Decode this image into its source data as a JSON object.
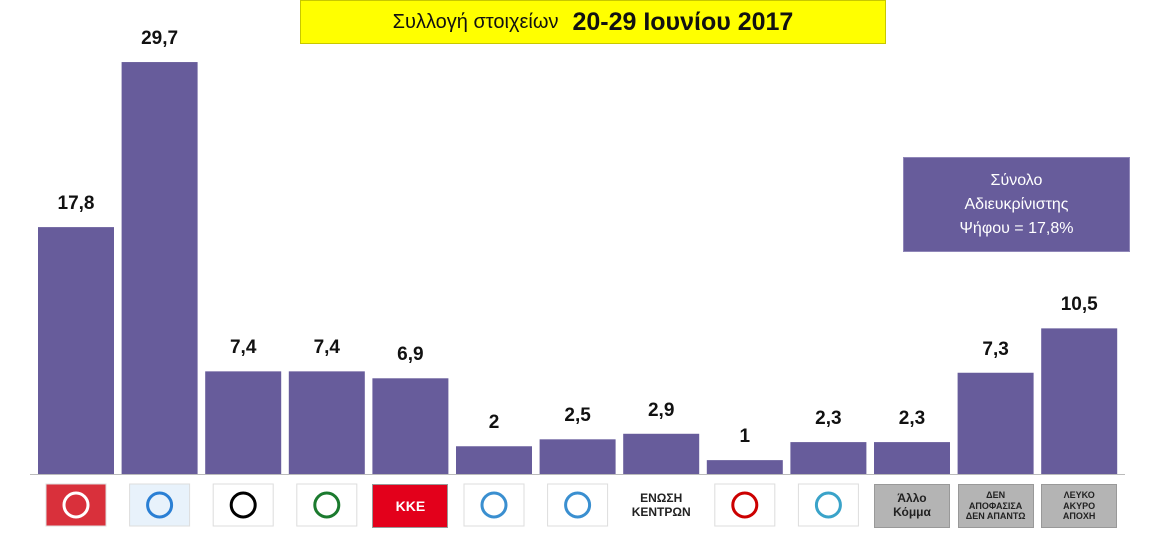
{
  "chart_data": {
    "type": "bar",
    "title": "Συλλογή στοιχείων",
    "subtitle": "20-29 Ιουνίου 2017",
    "annotation": "Σύνολο Αδιευκρίνιστης Ψήφου = 17,8%",
    "categories": [
      null,
      null,
      null,
      null,
      "ΚΚΕ",
      null,
      null,
      "ΕΝΩΣΗ ΚΕΝΤΡΩΝ",
      null,
      null,
      "Άλλο Κόμμα",
      "ΔΕΝ ΑΠΟΦΑΣΙΣΑ ΔΕΝ ΑΠΑΝΤΩ",
      "ΛΕΥΚΟ ΑΚΥΡΟ ΑΠΟΧΗ"
    ],
    "values": [
      17.8,
      29.7,
      7.4,
      7.4,
      6.9,
      2,
      2.5,
      2.9,
      1,
      2.3,
      2.3,
      7.3,
      10.5
    ],
    "value_labels": [
      "17,8",
      "29,7",
      "7,4",
      "7,4",
      "6,9",
      "2",
      "2,5",
      "2,9",
      "1",
      "2,3",
      "2,3",
      "7,3",
      "10,5"
    ],
    "color": "#675c9b"
  }
}
